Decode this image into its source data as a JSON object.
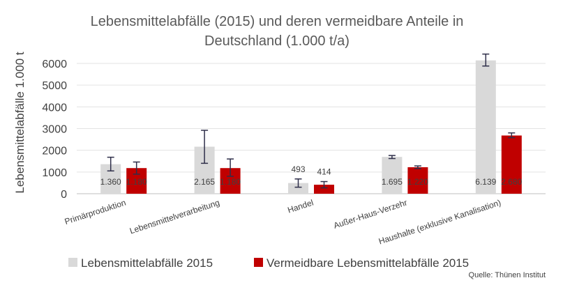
{
  "chart_data": {
    "type": "bar",
    "title_line1": "Lebensmittelabfälle (2015) und deren vermeidbare Anteile in",
    "title_line2": "Deutschland (1.000 t/a)",
    "ylabel": "Lebensmittelabfälle 1.000 t",
    "xlabel": "",
    "ylim": [
      0,
      6000
    ],
    "yticks": [
      0,
      1000,
      2000,
      3000,
      4000,
      5000,
      6000
    ],
    "grid": true,
    "legend_position": "bottom",
    "categories": [
      "Primärproduktion",
      "Lebensmittelverarbeitung",
      "Handel",
      "Außer-Haus-Verzehr",
      "Haushalte (exklusive Kanalisation)"
    ],
    "series": [
      {
        "name": "Lebensmittelabfälle 2015",
        "color": "#d9d9d9",
        "values": [
          1360,
          2165,
          493,
          1695,
          6139
        ],
        "labels": [
          "1.360",
          "2.165",
          "493",
          "1.695",
          "6.139"
        ],
        "error_low": [
          1050,
          1400,
          300,
          1620,
          5880
        ],
        "error_high": [
          1680,
          2920,
          680,
          1760,
          6430
        ]
      },
      {
        "name": "Vermeidbare Lebensmittelabfälle 2015",
        "color": "#c00000",
        "values": [
          1180,
          1180,
          414,
          1220,
          2680
        ],
        "labels": [
          "1.180",
          "1.180",
          "414",
          "1.220",
          "2.680"
        ],
        "error_low": [
          900,
          800,
          270,
          1160,
          2580
        ],
        "error_high": [
          1460,
          1600,
          560,
          1280,
          2800
        ]
      }
    ],
    "source": "Quelle: Thünen Institut"
  }
}
